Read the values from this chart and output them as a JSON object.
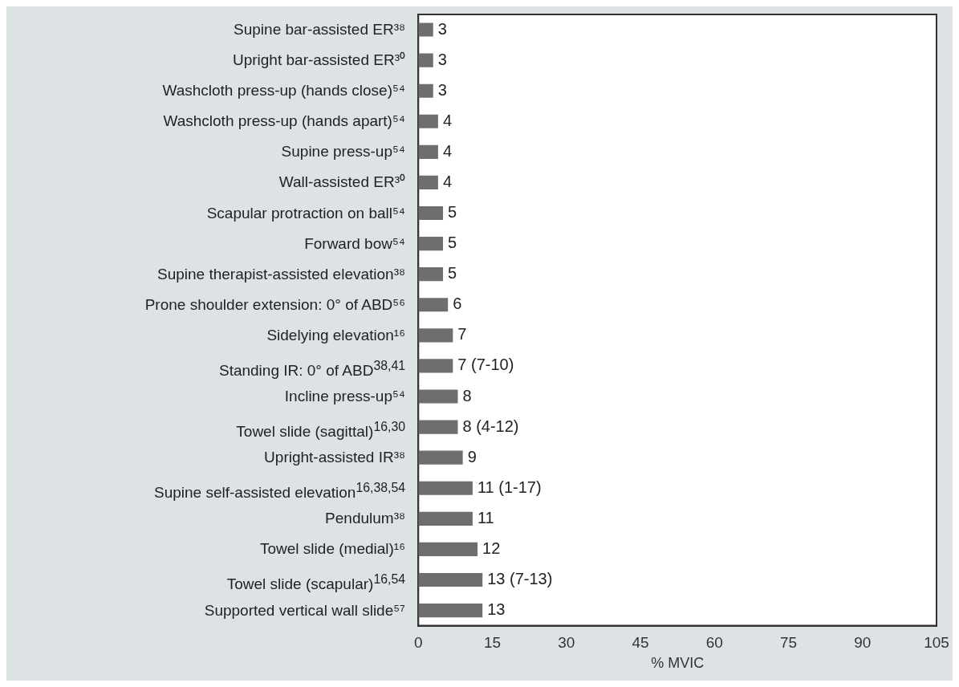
{
  "chart_data": {
    "type": "bar",
    "orientation": "horizontal",
    "xlabel": "% MVIC",
    "categories": [
      "Supine bar-assisted ER³⁸",
      "Upright bar-assisted ER³⁰",
      "Washcloth press-up (hands close)⁵⁴",
      "Washcloth press-up (hands apart)⁵⁴",
      "Supine press-up⁵⁴",
      "Wall-assisted ER³⁰",
      "Scapular protraction on ball⁵⁴",
      "Forward bow⁵⁴",
      "Supine therapist-assisted elevation³⁸",
      "Prone shoulder extension: 0° of ABD⁵⁶",
      "Sidelying elevation¹⁶",
      "Standing IR: 0° of ABD$^{38,41}$",
      "Incline press-up⁵⁴",
      "Towel slide (sagittal)$^{16,30}$",
      "Upright-assisted IR³⁸",
      "Supine self-assisted elevation$^{16,38,54}$",
      "Pendulum³⁸",
      "Towel slide (medial)¹⁶",
      "Towel slide (scapular)$^{16,54}$",
      "Supported vertical wall slide⁵⁷"
    ],
    "values": [
      3,
      3,
      3,
      4,
      4,
      4,
      5,
      5,
      5,
      6,
      7,
      7,
      8,
      8,
      9,
      11,
      11,
      12,
      13,
      13
    ],
    "value_labels": [
      "3",
      "3",
      "3",
      "4",
      "4",
      "4",
      "5",
      "5",
      "5",
      "6",
      "7",
      "7 (7-10)",
      "8",
      "8 (4-12)",
      "9",
      "11 (1-17)",
      "11",
      "12",
      "13 (7-13)",
      "13"
    ],
    "color": "#6e6e6e",
    "xlim": [
      0,
      105
    ],
    "xticks": [
      0,
      15,
      30,
      45,
      60,
      75,
      90,
      105
    ],
    "grid": false
  }
}
